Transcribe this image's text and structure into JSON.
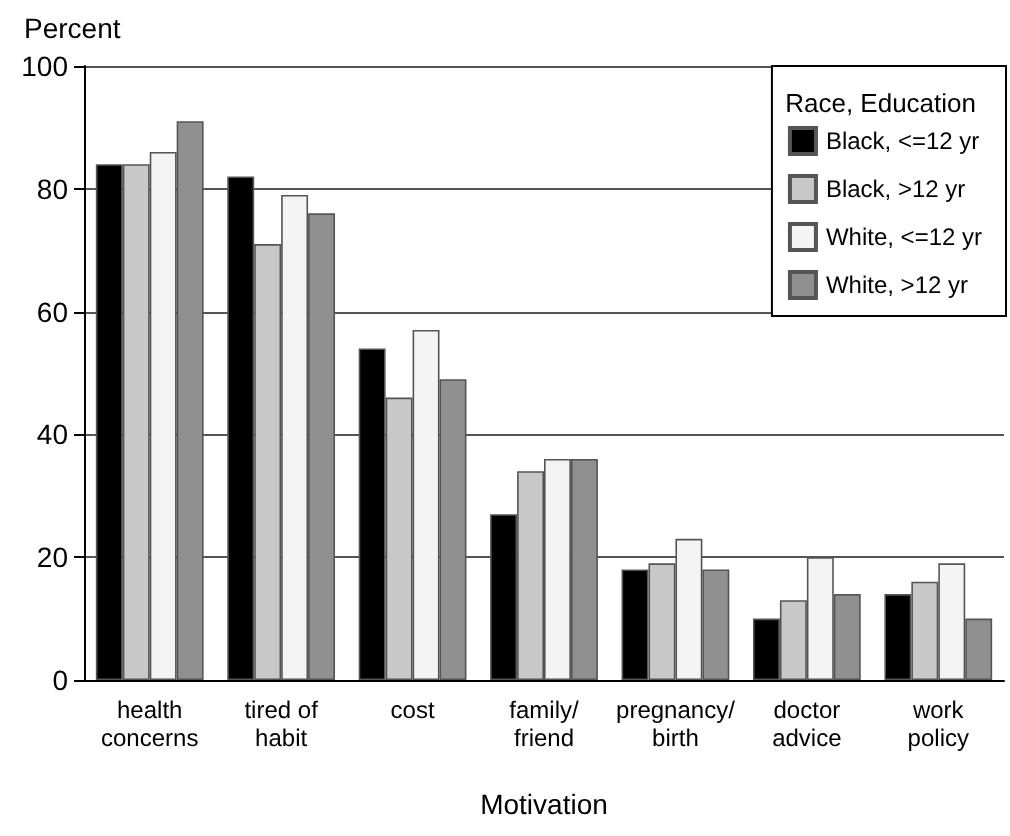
{
  "chart_data": {
    "type": "bar",
    "categories": [
      "health\nconcerns",
      "tired of\nhabit",
      "cost",
      "family/\nfriend",
      "pregnancy/\nbirth",
      "doctor\nadvice",
      "work\npolicy"
    ],
    "series": [
      {
        "name": "Black, <=12 yr",
        "color": "#000000",
        "values": [
          84,
          82,
          54,
          27,
          18,
          10,
          14
        ]
      },
      {
        "name": "Black, >12 yr",
        "color": "#c8c8c8",
        "values": [
          84,
          71,
          46,
          34,
          19,
          13,
          16
        ]
      },
      {
        "name": "White, <=12 yr",
        "color": "#f4f4f4",
        "values": [
          86,
          79,
          57,
          36,
          23,
          20,
          19
        ]
      },
      {
        "name": "White, >12 yr",
        "color": "#909090",
        "values": [
          91,
          76,
          49,
          36,
          18,
          14,
          10
        ]
      }
    ],
    "ylabel": "Percent",
    "xlabel": "Motivation",
    "legend_title": "Race, Education",
    "ylim": [
      0,
      100
    ],
    "yticks": [
      0,
      20,
      40,
      60,
      80,
      100
    ],
    "grid": "y",
    "legend": "top right"
  }
}
